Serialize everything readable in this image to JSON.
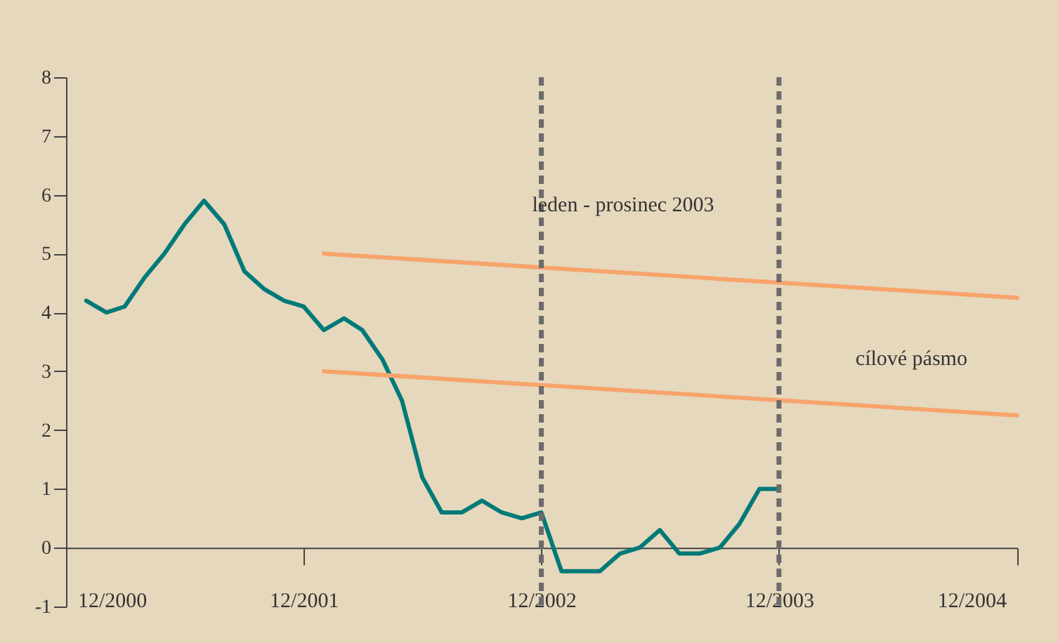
{
  "chart_data": {
    "type": "line",
    "xlim": [
      "2000-12",
      "2004-12"
    ],
    "xticks": [
      {
        "value": "2000-12",
        "label": "12/2000"
      },
      {
        "value": "2001-12",
        "label": "12/2001"
      },
      {
        "value": "2002-12",
        "label": "12/2002"
      },
      {
        "value": "2003-12",
        "label": "12/2003"
      },
      {
        "value": "2004-12",
        "label": "12/2004"
      }
    ],
    "ylim": [
      -1,
      8
    ],
    "yticks": [
      -1,
      0,
      1,
      2,
      3,
      4,
      5,
      6,
      7,
      8
    ],
    "grid": false,
    "marker": "none",
    "line_style": "solid",
    "series": [
      {
        "color": "#007a78",
        "x": [
          "2001-01",
          "2001-02",
          "2001-03",
          "2001-04",
          "2001-05",
          "2001-06",
          "2001-07",
          "2001-08",
          "2001-09",
          "2001-10",
          "2001-11",
          "2001-12",
          "2002-01",
          "2002-02",
          "2002-03",
          "2002-04",
          "2002-05",
          "2002-06",
          "2002-07",
          "2002-08",
          "2002-09",
          "2002-10",
          "2002-11",
          "2002-12",
          "2003-01",
          "2003-02",
          "2003-03",
          "2003-04",
          "2003-05",
          "2003-06",
          "2003-07",
          "2003-08",
          "2003-09",
          "2003-10",
          "2003-11",
          "2003-12"
        ],
        "values": [
          4.2,
          4.0,
          4.1,
          4.6,
          5.0,
          5.5,
          5.9,
          5.5,
          4.7,
          4.4,
          4.2,
          4.1,
          3.7,
          3.9,
          3.7,
          3.2,
          2.5,
          1.2,
          0.6,
          0.6,
          0.8,
          0.6,
          0.5,
          0.6,
          -0.4,
          -0.4,
          -0.4,
          -0.1,
          0.0,
          0.3,
          -0.1,
          -0.1,
          0.0,
          0.4,
          1.0,
          1.0
        ]
      },
      {
        "color": "#f7a46c",
        "x": [
          "2002-01",
          "2004-12"
        ],
        "values": [
          5,
          4.25
        ]
      },
      {
        "color": "#f7a46c",
        "x": [
          "2002-01",
          "2004-12"
        ],
        "values": [
          3,
          2.25
        ]
      }
    ],
    "ref_lines": [
      {
        "axis": "x",
        "value": "2002-12",
        "color": "#6b6b6b",
        "line_style": "dashed"
      },
      {
        "axis": "x",
        "value": "2003-12",
        "color": "#6b6b6b",
        "line_style": "dashed"
      }
    ],
    "annotations": [
      "leden - prosinec  2003",
      "cílové pásmo"
    ]
  }
}
